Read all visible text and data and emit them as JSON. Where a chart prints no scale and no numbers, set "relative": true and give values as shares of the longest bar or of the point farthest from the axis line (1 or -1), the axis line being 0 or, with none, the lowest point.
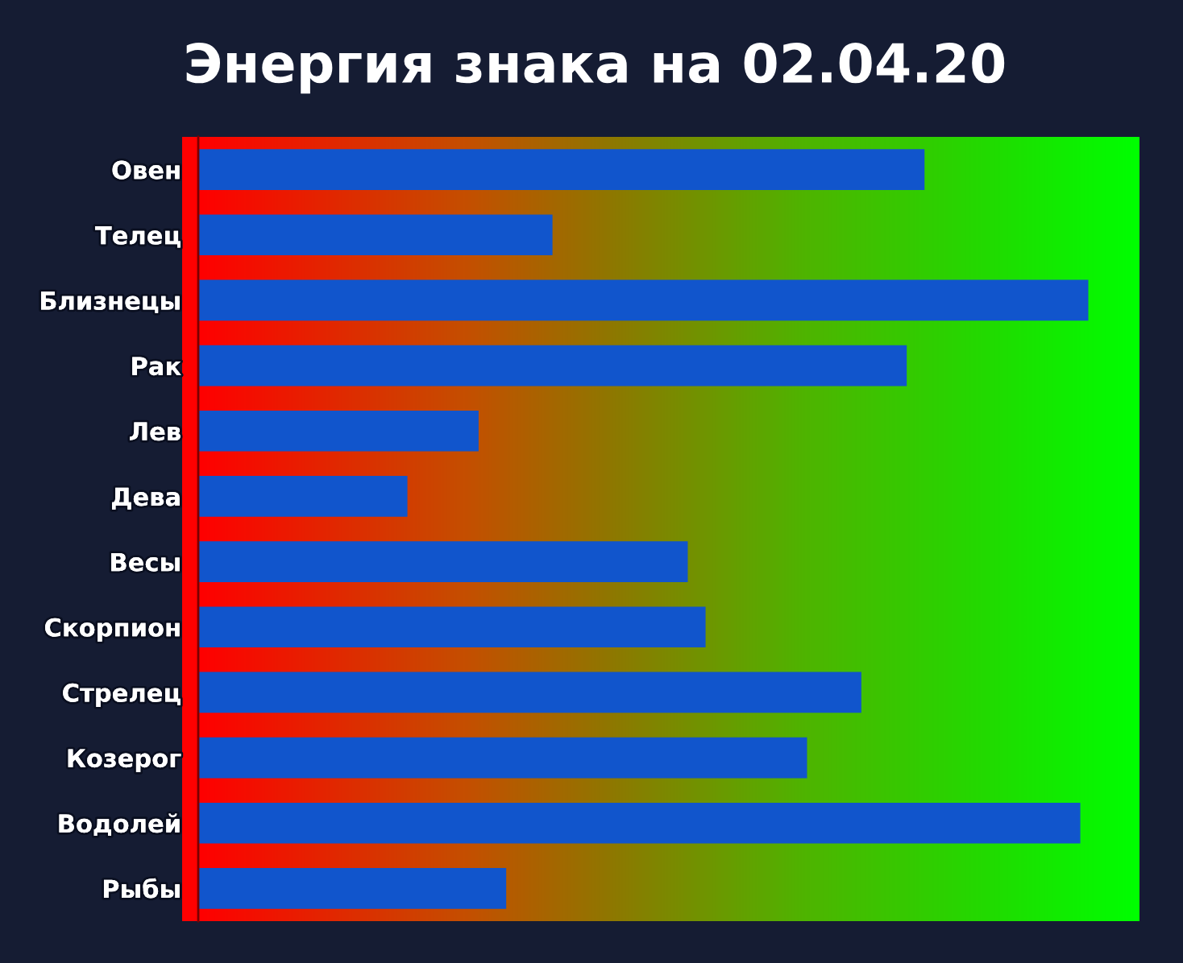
{
  "chart_data": {
    "type": "bar",
    "orientation": "horizontal",
    "relative": true,
    "title": "Энергия знака на 02.04.20",
    "categories": [
      "Овен",
      "Телец",
      "Близнецы",
      "Рак",
      "Лев",
      "Дева",
      "Весы",
      "Скорпион",
      "Стрелец",
      "Козерог",
      "Водолей",
      "Рыбы"
    ],
    "values": [
      0.816,
      0.398,
      1,
      0.796,
      0.315,
      0.235,
      0.55,
      0.57,
      0.745,
      0.684,
      0.991,
      0.346
    ],
    "color": "#1155cc",
    "grid": false,
    "legend": false
  }
}
